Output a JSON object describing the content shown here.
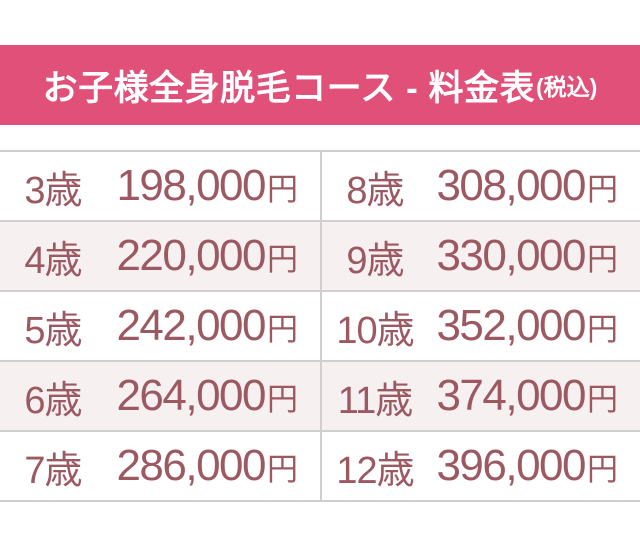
{
  "header": {
    "title": "お子様全身脱毛コース - 料金表",
    "tax_note": "(税込)"
  },
  "price_table": {
    "unit": "円",
    "left_column": [
      {
        "age": "3歳",
        "price": "198,000"
      },
      {
        "age": "4歳",
        "price": "220,000"
      },
      {
        "age": "5歳",
        "price": "242,000"
      },
      {
        "age": "6歳",
        "price": "264,000"
      },
      {
        "age": "7歳",
        "price": "286,000"
      }
    ],
    "right_column": [
      {
        "age": "8歳",
        "price": "308,000"
      },
      {
        "age": "9歳",
        "price": "330,000"
      },
      {
        "age": "10歳",
        "price": "352,000"
      },
      {
        "age": "11歳",
        "price": "374,000"
      },
      {
        "age": "12歳",
        "price": "396,000"
      }
    ]
  },
  "colors": {
    "banner_bg": "#e05078",
    "banner_text": "#ffffff",
    "table_text": "#9c5962",
    "row_alt_bg": "#f6f0f1",
    "border": "#cfcfcf",
    "page_bg": "#ffffff"
  }
}
